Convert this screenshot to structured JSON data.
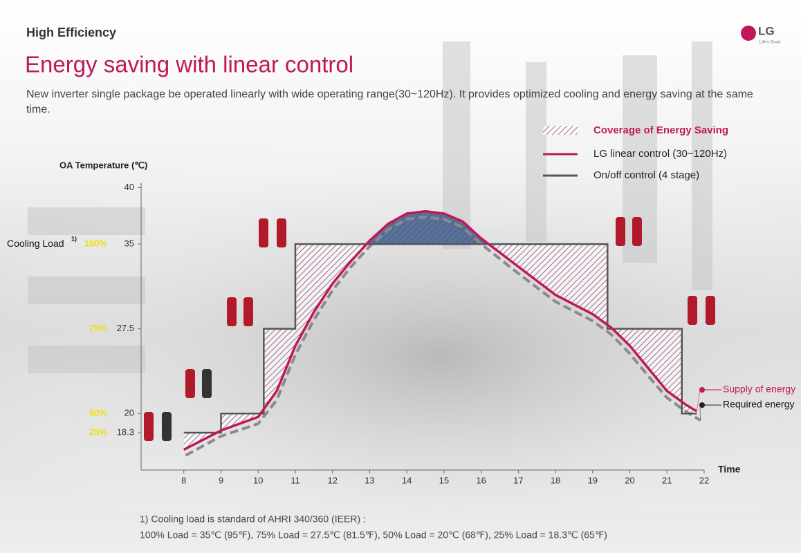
{
  "header": {
    "section": "High Efficiency",
    "title": "Energy saving with linear control",
    "description": "New inverter single package be operated linearly with wide operating range(30~120Hz). It provides optimized cooling and energy saving at the same time.",
    "logo": "LG",
    "tagline": "Life's Good"
  },
  "chart_data": {
    "type": "line",
    "y_label": "OA Temperature (℃)",
    "x_label": "Time",
    "xlim": [
      6.85,
      22
    ],
    "xticks": [
      8,
      9,
      10,
      11,
      12,
      13,
      14,
      15,
      16,
      17,
      18,
      19,
      20,
      21,
      22
    ],
    "ylim": [
      15,
      41
    ],
    "yticks": [
      18.3,
      20,
      27.5,
      35,
      40
    ],
    "cooling_load_label": "Cooling Load",
    "cooling_load_note": "1)",
    "load_labels": [
      "25%",
      "50%",
      "75%",
      "100%"
    ],
    "coverage_label": "Coverage of Energy Saving",
    "coverage_color": "#7a2a5c",
    "series": [
      {
        "name": "LG linear control (30~120Hz)",
        "color": "#c0185a",
        "legend": true,
        "end_label": "Supply of energy",
        "x": [
          8,
          9,
          10,
          10.5,
          11,
          11.5,
          12,
          12.5,
          13,
          13.5,
          14,
          14.5,
          15,
          15.5,
          16,
          17,
          18,
          19,
          19.5,
          20,
          20.5,
          21,
          21.5,
          21.8
        ],
        "values": [
          16.8,
          18.5,
          19.7,
          22,
          26,
          29,
          31.5,
          33.5,
          35.3,
          36.8,
          37.7,
          37.9,
          37.7,
          37,
          35.5,
          33,
          30.5,
          28.8,
          27.6,
          26,
          24,
          22,
          20.8,
          20.2
        ]
      },
      {
        "name": "On/off control (4 stage)",
        "color": "#555555",
        "legend": true,
        "x": [
          8,
          9,
          9,
          10.15,
          10.15,
          11,
          11,
          19.4,
          19.4,
          21.4,
          21.4,
          21.8
        ],
        "values": [
          18.3,
          18.3,
          20,
          20,
          27.5,
          27.5,
          35,
          35,
          27.5,
          27.5,
          20,
          20
        ]
      },
      {
        "name": "Required energy",
        "color": "#8a8a8a",
        "legend": false,
        "dashed": true,
        "x": [
          8.05,
          9,
          10,
          10.5,
          11,
          11.5,
          12,
          12.5,
          13,
          13.5,
          14,
          14.5,
          15,
          15.5,
          16,
          17,
          18,
          19,
          19.5,
          20,
          20.5,
          21,
          21.5,
          21.9
        ],
        "values": [
          16.3,
          18,
          19.1,
          21.2,
          25.2,
          28.3,
          30.9,
          33,
          34.8,
          36.3,
          37.2,
          37.4,
          37.2,
          36.5,
          35,
          32.4,
          29.9,
          28.2,
          27,
          25.3,
          23.3,
          21.4,
          20.2,
          19.4
        ]
      }
    ]
  },
  "footnote": [
    "1) Cooling load is standard of AHRI 340/360 (IEER) :",
    "100% Load = 35℃ (95℉),  75% Load = 27.5℃ (81.5℉),  50% Load = 20℃ (68℉),  25% Load = 18.3℃ (65℉)"
  ]
}
